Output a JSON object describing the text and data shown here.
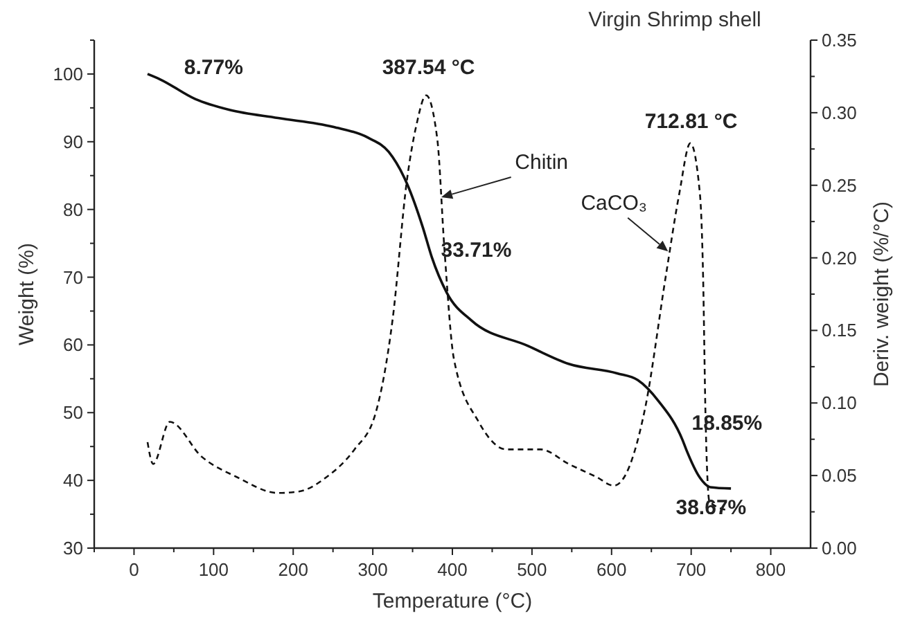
{
  "chart_data": {
    "type": "line",
    "title": "Virgin Shrimp shell",
    "xlabel": "Temperature (°C)",
    "ylabel": "Weight (%)",
    "y2label": "Deriv. weight (%/°C)",
    "annotations": [
      "8.77%",
      "387.54 °C",
      "712.81 °C",
      {
        "text": "Chitin",
        "x": 386,
        "y": 81.8
      },
      {
        "text": "CaCO₃",
        "x": 671,
        "y": 73.8
      },
      "33.71%",
      "18.85%",
      "38.67%"
    ],
    "series": [
      {
        "color": "#111111",
        "line_style": "solid",
        "x": [
          17,
          33,
          77,
          120,
          181,
          250,
          294,
          320,
          343,
          363,
          374,
          393,
          424,
          494,
          546,
          607,
          633,
          659,
          689,
          694,
          711,
          724,
          750
        ],
        "values": [
          100,
          99.2,
          96.3,
          94.7,
          93.5,
          92.2,
          90.6,
          88.5,
          83.8,
          77.3,
          73,
          67.7,
          63.6,
          59.9,
          57.2,
          55.8,
          54.8,
          51.7,
          46,
          44.5,
          40.4,
          39,
          38.8
        ]
      },
      {
        "color": "#111111",
        "line_style": "dashed",
        "axis": "y2",
        "x": [
          17,
          24,
          45,
          85,
          129,
          181,
          207,
          242,
          277,
          303,
          325,
          343,
          355,
          367,
          381,
          390,
          402,
          433,
          468,
          511,
          546,
          581,
          603,
          616,
          642,
          668,
          685,
          699,
          711,
          715,
          718,
          723,
          746
        ],
        "values": [
          0.073,
          0.058,
          0.087,
          0.063,
          0.049,
          0.038,
          0.039,
          0.049,
          0.068,
          0.092,
          0.158,
          0.254,
          0.292,
          0.312,
          0.282,
          0.206,
          0.13,
          0.087,
          0.068,
          0.068,
          0.058,
          0.049,
          0.043,
          0.049,
          0.096,
          0.187,
          0.244,
          0.279,
          0.244,
          0.187,
          0.092,
          0.032,
          0.026
        ]
      }
    ],
    "xlim": [
      -50,
      850
    ],
    "xticks": [
      {
        "value": -50,
        "label": null
      },
      0,
      {
        "value": 50,
        "label": null
      },
      100,
      {
        "value": 150,
        "label": null
      },
      200,
      {
        "value": 250,
        "label": null
      },
      300,
      {
        "value": 350,
        "label": null
      },
      400,
      {
        "value": 450,
        "label": null
      },
      500,
      {
        "value": 550,
        "label": null
      },
      600,
      {
        "value": 650,
        "label": null
      },
      700,
      {
        "value": 750,
        "label": null
      },
      800
    ],
    "ylim": [
      30,
      105
    ],
    "yticks": [
      30,
      {
        "value": 35,
        "label": null
      },
      40,
      {
        "value": 45,
        "label": null
      },
      50,
      {
        "value": 55,
        "label": null
      },
      60,
      {
        "value": 65,
        "label": null
      },
      70,
      {
        "value": 75,
        "label": null
      },
      80,
      {
        "value": 85,
        "label": null
      },
      90,
      {
        "value": 95,
        "label": null
      },
      100,
      {
        "value": 105,
        "label": null
      }
    ],
    "y2lim": [
      0,
      0.35
    ],
    "y2ticks": [
      {
        "value": 0,
        "label": "0.00"
      },
      {
        "value": 0.025,
        "label": null
      },
      {
        "value": 0.05,
        "label": "0.05"
      },
      {
        "value": 0.075,
        "label": null
      },
      {
        "value": 0.1,
        "label": "0.10"
      },
      {
        "value": 0.125,
        "label": null
      },
      {
        "value": 0.15,
        "label": "0.15"
      },
      {
        "value": 0.175,
        "label": null
      },
      {
        "value": 0.2,
        "label": "0.20"
      },
      {
        "value": 0.225,
        "label": null
      },
      {
        "value": 0.25,
        "label": "0.25"
      },
      {
        "value": 0.275,
        "label": null
      },
      {
        "value": 0.3,
        "label": "0.30"
      },
      {
        "value": 0.325,
        "label": null
      },
      {
        "value": 0.35,
        "label": "0.35"
      }
    ],
    "grid": false
  }
}
